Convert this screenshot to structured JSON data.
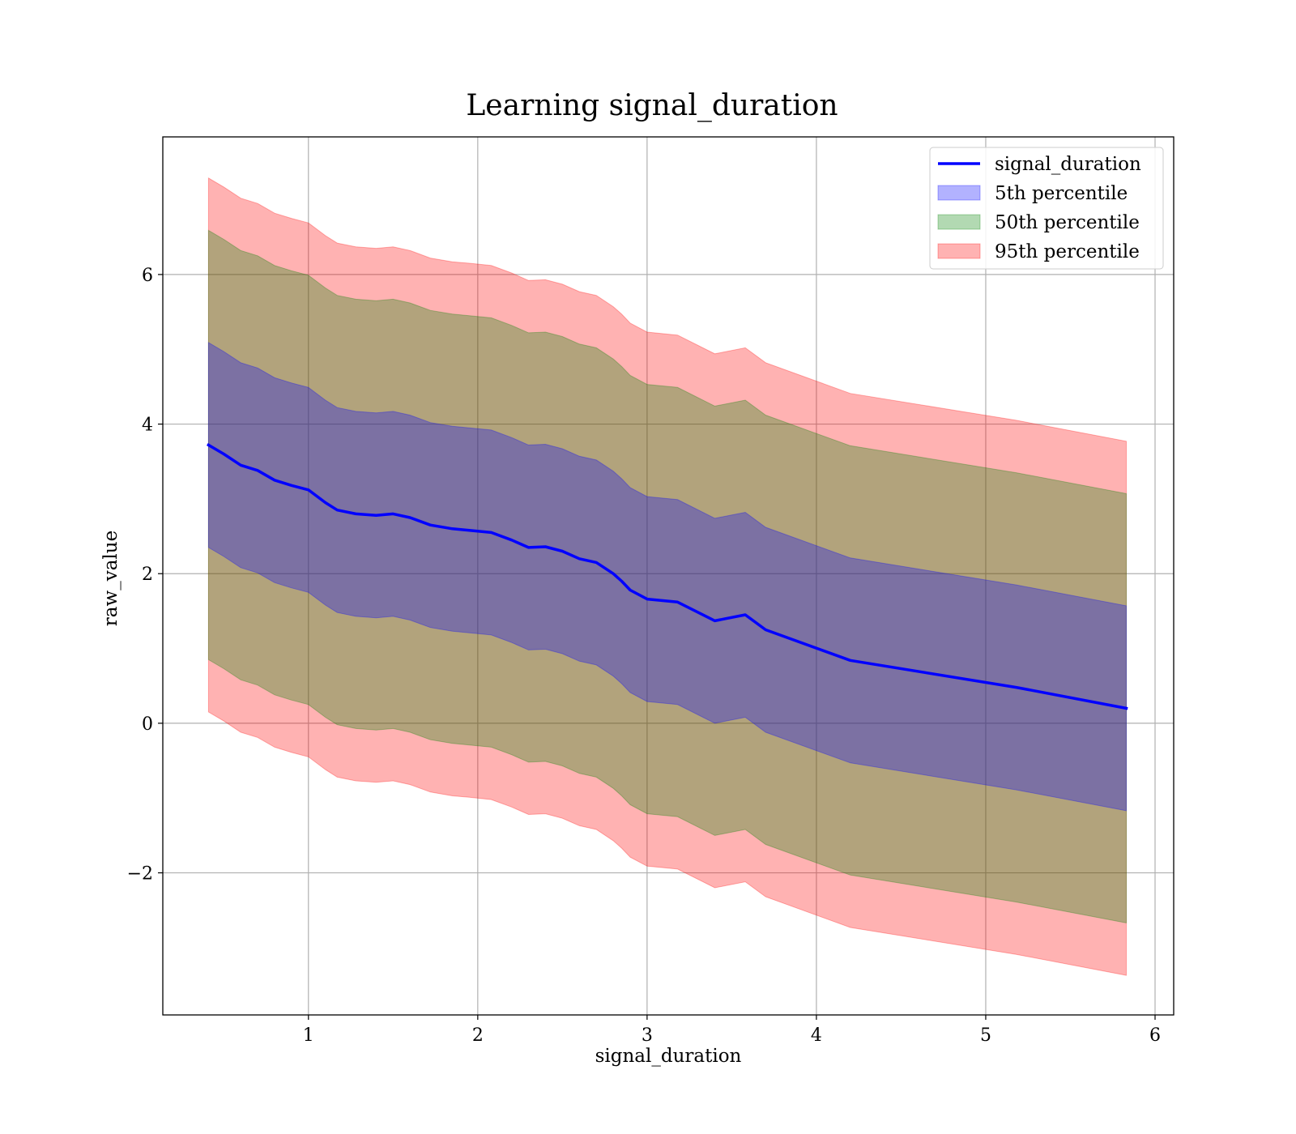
{
  "chart_data": {
    "type": "area",
    "title": "Learning signal_duration",
    "xlabel": "signal_duration",
    "ylabel": "raw_value",
    "xlim": [
      0.14,
      6.11
    ],
    "ylim": [
      -3.9,
      7.84
    ],
    "xticks": [
      1,
      2,
      3,
      4,
      5,
      6
    ],
    "yticks": [
      -2,
      0,
      2,
      4,
      6
    ],
    "xtick_labels": [
      "1",
      "2",
      "3",
      "4",
      "5",
      "6"
    ],
    "ytick_labels": [
      "−2",
      "0",
      "2",
      "4",
      "6"
    ],
    "grid": true,
    "legend_position": "top-right",
    "x": [
      0.41,
      0.5,
      0.6,
      0.7,
      0.8,
      0.9,
      1.0,
      1.1,
      1.17,
      1.28,
      1.4,
      1.5,
      1.6,
      1.72,
      1.85,
      1.95,
      2.08,
      2.2,
      2.3,
      2.4,
      2.5,
      2.6,
      2.7,
      2.8,
      2.85,
      2.9,
      3.0,
      3.18,
      3.4,
      3.58,
      3.7,
      4.2,
      5.18,
      5.83
    ],
    "series": [
      {
        "name": "signal_duration",
        "kind": "line",
        "color": "#0000ff",
        "values": [
          3.72,
          3.6,
          3.45,
          3.38,
          3.25,
          3.18,
          3.12,
          2.95,
          2.85,
          2.8,
          2.78,
          2.8,
          2.75,
          2.65,
          2.6,
          2.58,
          2.55,
          2.45,
          2.35,
          2.36,
          2.3,
          2.2,
          2.15,
          2.0,
          1.9,
          1.78,
          1.66,
          1.62,
          1.37,
          1.45,
          1.25,
          0.84,
          0.48,
          0.2
        ]
      },
      {
        "name": "5th percentile",
        "kind": "band",
        "color": "#0000ff",
        "half_width": 1.37
      },
      {
        "name": "50th percentile",
        "kind": "band",
        "color": "#008000",
        "half_width": 2.87
      },
      {
        "name": "95th percentile",
        "kind": "band",
        "color": "#ff0000",
        "half_width": 3.57
      }
    ]
  }
}
